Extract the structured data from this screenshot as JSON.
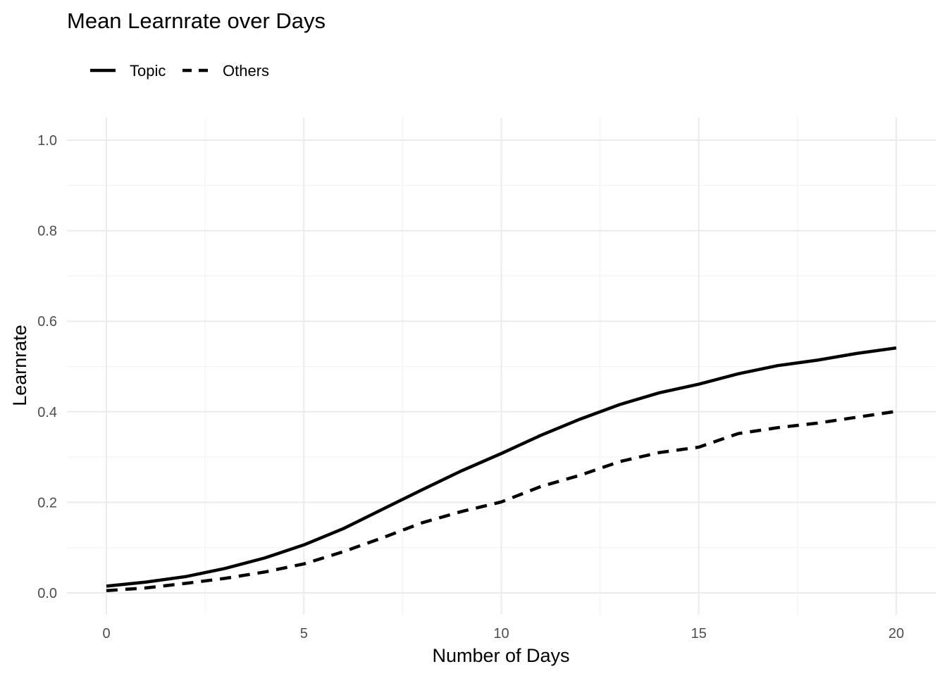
{
  "chart_data": {
    "type": "line",
    "title": "Mean Learnrate over Days",
    "xlabel": "Number of Days",
    "ylabel": "Learnrate",
    "xlim": [
      0,
      20
    ],
    "ylim": [
      0,
      1
    ],
    "x_ticks": [
      0,
      5,
      10,
      15,
      20
    ],
    "x_tick_labels": [
      "0",
      "5",
      "10",
      "15",
      "20"
    ],
    "y_ticks": [
      0,
      0.2,
      0.4,
      0.6,
      0.8,
      1.0
    ],
    "y_tick_labels": [
      "0.0",
      "0.2",
      "0.4",
      "0.6",
      "0.8",
      "1.0"
    ],
    "grid": true,
    "legend_position": "top-left",
    "line_color": "#000000",
    "series": [
      {
        "name": "Topic",
        "line_style": "solid",
        "x": [
          0,
          1,
          2,
          3,
          4,
          5,
          6,
          7,
          8,
          9,
          10,
          11,
          12,
          13,
          14,
          15,
          16,
          17,
          18,
          19,
          20
        ],
        "values": [
          0.015,
          0.024,
          0.036,
          0.054,
          0.077,
          0.106,
          0.142,
          0.185,
          0.228,
          0.27,
          0.308,
          0.348,
          0.384,
          0.416,
          0.442,
          0.461,
          0.484,
          0.502,
          0.514,
          0.529,
          0.541
        ]
      },
      {
        "name": "Others",
        "line_style": "dashed",
        "x": [
          0,
          1,
          2,
          3,
          4,
          5,
          6,
          7,
          8,
          9,
          10,
          11,
          12,
          13,
          14,
          15,
          16,
          17,
          18,
          19,
          20
        ],
        "values": [
          0.005,
          0.011,
          0.021,
          0.032,
          0.046,
          0.064,
          0.091,
          0.122,
          0.155,
          0.18,
          0.201,
          0.235,
          0.26,
          0.29,
          0.31,
          0.322,
          0.352,
          0.365,
          0.375,
          0.388,
          0.401
        ]
      }
    ]
  }
}
